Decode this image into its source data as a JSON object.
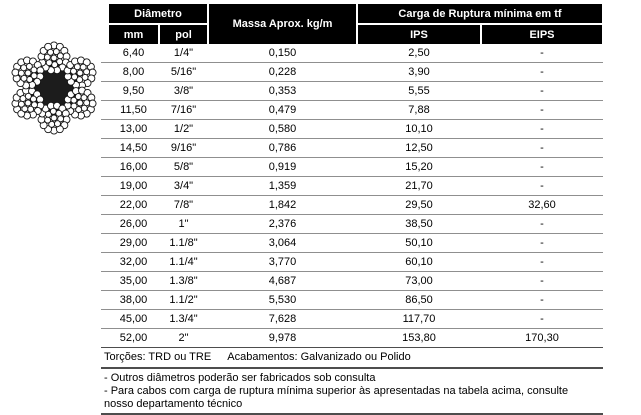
{
  "rope_image": {
    "name": "wire-rope-cross-section",
    "strands": 6,
    "core_color": "#1c1c1c",
    "wire_fill": "#ffffff",
    "wire_stroke": "#141414"
  },
  "table": {
    "header": {
      "diametro": "Diâmetro",
      "mm": "mm",
      "pol": "pol",
      "massa": "Massa Aprox. kg/m",
      "carga": "Carga de Ruptura mínima em tf",
      "ips": "IPS",
      "eips": "EIPS"
    },
    "rows": [
      [
        "6,40",
        "1/4\"",
        "0,150",
        "2,50",
        "-"
      ],
      [
        "8,00",
        "5/16\"",
        "0,228",
        "3,90",
        "-"
      ],
      [
        "9,50",
        "3/8\"",
        "0,353",
        "5,55",
        "-"
      ],
      [
        "11,50",
        "7/16\"",
        "0,479",
        "7,88",
        "-"
      ],
      [
        "13,00",
        "1/2\"",
        "0,580",
        "10,10",
        "-"
      ],
      [
        "14,50",
        "9/16\"",
        "0,786",
        "12,50",
        "-"
      ],
      [
        "16,00",
        "5/8\"",
        "0,919",
        "15,20",
        "-"
      ],
      [
        "19,00",
        "3/4\"",
        "1,359",
        "21,70",
        "-"
      ],
      [
        "22,00",
        "7/8\"",
        "1,842",
        "29,50",
        "32,60"
      ],
      [
        "26,00",
        "1\"",
        "2,376",
        "38,50",
        "-"
      ],
      [
        "29,00",
        "1.1/8\"",
        "3,064",
        "50,10",
        "-"
      ],
      [
        "32,00",
        "1.1/4\"",
        "3,770",
        "60,10",
        "-"
      ],
      [
        "35,00",
        "1.3/8\"",
        "4,687",
        "73,00",
        "-"
      ],
      [
        "38,00",
        "1.1/2\"",
        "5,530",
        "86,50",
        "-"
      ],
      [
        "45,00",
        "1.3/4\"",
        "7,628",
        "117,70",
        "-"
      ],
      [
        "52,00",
        "2\"",
        "9,978",
        "153,80",
        "170,30"
      ]
    ]
  },
  "footer": {
    "torcoes": "Torções: TRD ou TRE",
    "acabamentos": "Acabamentos: Galvanizado ou Polido",
    "notes": [
      "- Outros diâmetros poderão ser fabricados sob consulta",
      "- Para cabos com carga de ruptura mínima superior às apresentadas na tabela acima, consulte",
      "nosso departamento técnico"
    ]
  },
  "colors": {
    "header_bg": "#000000",
    "header_text": "#ffffff",
    "body_text": "#000000",
    "row_line": "#8f8f8f",
    "section_line": "#4d4d4d"
  }
}
